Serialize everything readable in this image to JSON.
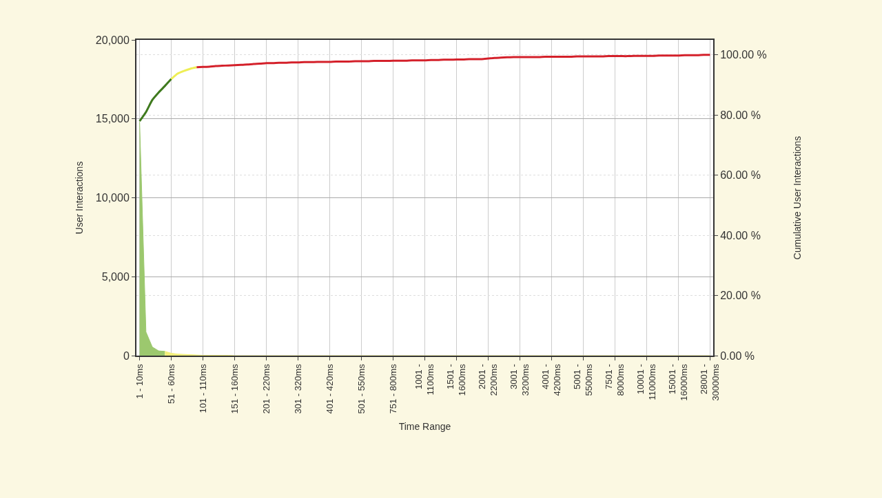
{
  "chart_data": {
    "type": "area",
    "xlabel": "Time Range",
    "ylabel": "User Interactions",
    "y2label": "Cumulative User Interactions",
    "categories": [
      "1 - 10ms",
      null,
      null,
      null,
      null,
      "51 - 60ms",
      null,
      null,
      null,
      null,
      "101 - 110ms",
      null,
      null,
      null,
      null,
      "151 - 160ms",
      null,
      null,
      null,
      null,
      "201 - 220ms",
      null,
      null,
      null,
      null,
      "301 - 320ms",
      null,
      null,
      null,
      null,
      "401 - 420ms",
      null,
      null,
      null,
      null,
      "501 - 550ms",
      null,
      null,
      null,
      null,
      "751 - 800ms",
      null,
      null,
      null,
      null,
      "1001 - 1100ms",
      null,
      null,
      null,
      null,
      "1501 - 1600ms",
      null,
      null,
      null,
      null,
      "2001 - 2200ms",
      null,
      null,
      null,
      null,
      "3001 - 3200ms",
      null,
      null,
      null,
      null,
      "4001 - 4200ms",
      null,
      null,
      null,
      null,
      "5001 - 5500ms",
      null,
      null,
      null,
      null,
      "7501 - 8000ms",
      null,
      null,
      null,
      null,
      "10001 - 11000ms",
      null,
      null,
      null,
      null,
      "15001 - 16000ms",
      null,
      null,
      null,
      null,
      "28001 - 30000ms"
    ],
    "series": [
      {
        "color": "#9cc86e",
        "values": [
          14800,
          1500,
          550,
          300,
          270,
          null,
          null,
          null,
          null,
          null,
          null,
          null,
          null,
          null,
          null,
          null,
          null,
          null,
          null,
          null,
          null,
          null,
          null,
          null,
          null,
          null,
          null,
          null,
          null,
          null,
          null,
          null,
          null,
          null,
          null,
          null,
          null,
          null,
          null,
          null,
          null,
          null,
          null,
          null,
          null,
          null,
          null,
          null,
          null,
          null,
          null,
          null,
          null,
          null,
          null,
          null,
          null,
          null,
          null,
          null,
          null,
          null,
          null,
          null,
          null,
          null,
          null,
          null,
          null,
          null,
          null,
          null,
          null,
          null,
          null,
          null,
          null,
          null,
          null,
          null,
          null,
          null,
          null,
          null,
          null,
          null,
          null,
          null,
          null,
          null,
          null
        ]
      },
      {
        "color": "#f2ef7a",
        "values": [
          null,
          null,
          null,
          null,
          270,
          150,
          100,
          80,
          60,
          40,
          20,
          20,
          20,
          20,
          20,
          0,
          0,
          0,
          0,
          0,
          0,
          0,
          0,
          0,
          0,
          0,
          0,
          0,
          0,
          0,
          0,
          0,
          0,
          0,
          0,
          0,
          0,
          0,
          0,
          0,
          0,
          0,
          0,
          0,
          0,
          0,
          0,
          0,
          0,
          0,
          0,
          0,
          0,
          0,
          0,
          0,
          0,
          0,
          0,
          0,
          0,
          0,
          0,
          0,
          0,
          0,
          0,
          0,
          0,
          0,
          0,
          0,
          0,
          0,
          0,
          0,
          0,
          0,
          0,
          0,
          0,
          0,
          0,
          0,
          0,
          0,
          0,
          0,
          0,
          0,
          0
        ]
      },
      {
        "type": "line",
        "axis": "y2",
        "color": "#3f7a1e",
        "values": [
          78,
          81,
          85,
          87.5,
          89.7,
          92,
          null,
          null,
          null,
          null,
          null,
          null,
          null,
          null,
          null,
          null,
          null,
          null,
          null,
          null,
          null,
          null,
          null,
          null,
          null,
          null,
          null,
          null,
          null,
          null,
          null,
          null,
          null,
          null,
          null,
          null,
          null,
          null,
          null,
          null,
          null,
          null,
          null,
          null,
          null,
          null,
          null,
          null,
          null,
          null,
          null,
          null,
          null,
          null,
          null,
          null,
          null,
          null,
          null,
          null,
          null,
          null,
          null,
          null,
          null,
          null,
          null,
          null,
          null,
          null,
          null,
          null,
          null,
          null,
          null,
          null,
          null,
          null,
          null,
          null,
          null,
          null,
          null,
          null,
          null,
          null,
          null,
          null,
          null,
          null,
          null
        ]
      },
      {
        "type": "line",
        "axis": "y2",
        "color": "#eeee55",
        "values": [
          null,
          null,
          null,
          null,
          null,
          92,
          93.8,
          94.7,
          95.4,
          95.9,
          null,
          null,
          null,
          null,
          null,
          null,
          null,
          null,
          null,
          null,
          null,
          null,
          null,
          null,
          null,
          null,
          null,
          null,
          null,
          null,
          null,
          null,
          null,
          null,
          null,
          null,
          null,
          null,
          null,
          null,
          null,
          null,
          null,
          null,
          null,
          null,
          null,
          null,
          null,
          null,
          null,
          null,
          null,
          null,
          null,
          null,
          null,
          null,
          null,
          null,
          null,
          null,
          null,
          null,
          null,
          null,
          null,
          null,
          null,
          null,
          null,
          null,
          null,
          null,
          null,
          null,
          null,
          null,
          null,
          null,
          null,
          null,
          null,
          null,
          null,
          null,
          null,
          null,
          null,
          null,
          null
        ]
      },
      {
        "type": "line",
        "axis": "y2",
        "color": "#d4202a",
        "values": [
          null,
          null,
          null,
          null,
          null,
          null,
          null,
          null,
          null,
          95.9,
          96.0,
          96.1,
          96.3,
          96.4,
          96.5,
          96.6,
          96.7,
          96.8,
          97.0,
          97.1,
          97.3,
          97.3,
          97.4,
          97.4,
          97.5,
          97.5,
          97.6,
          97.6,
          97.7,
          97.7,
          97.7,
          97.8,
          97.8,
          97.8,
          97.9,
          97.9,
          97.9,
          98.0,
          98.0,
          98.0,
          98.1,
          98.1,
          98.1,
          98.2,
          98.2,
          98.2,
          98.3,
          98.3,
          98.4,
          98.4,
          98.5,
          98.5,
          98.6,
          98.6,
          98.6,
          98.8,
          99.0,
          99.1,
          99.2,
          99.3,
          99.3,
          99.3,
          99.3,
          99.3,
          99.4,
          99.4,
          99.4,
          99.4,
          99.4,
          99.5,
          99.5,
          99.5,
          99.5,
          99.5,
          99.6,
          99.6,
          99.6,
          99.6,
          99.7,
          99.7,
          99.7,
          99.7,
          99.8,
          99.8,
          99.8,
          99.8,
          99.9,
          99.9,
          99.9,
          100,
          100
        ]
      }
    ],
    "ylim": [
      0,
      20000
    ],
    "yticks": [
      0,
      {
        "value": 5000,
        "label": "5,000"
      },
      {
        "value": 10000,
        "label": "10,000"
      },
      {
        "value": 15000,
        "label": "15,000"
      },
      {
        "value": 20000,
        "label": "20,000"
      }
    ],
    "y2lim": [
      0,
      105
    ],
    "y2ticks": [
      {
        "value": 0,
        "label": "0.00 %"
      },
      {
        "value": 20,
        "label": "20.00 %"
      },
      {
        "value": 40,
        "label": "40.00 %"
      },
      {
        "value": 60,
        "label": "60.00 %"
      },
      {
        "value": 80,
        "label": "80.00 %"
      },
      {
        "value": 100,
        "label": "100.00 %"
      }
    ],
    "grid": true
  }
}
